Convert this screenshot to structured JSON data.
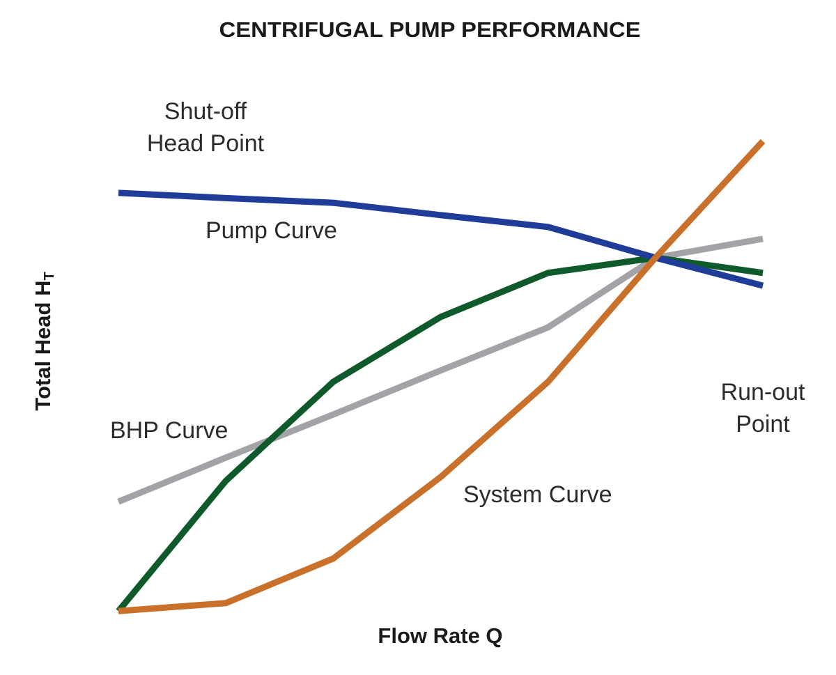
{
  "chart_data": {
    "type": "line",
    "title": "CENTRIFUGAL PUMP PERFORMANCE",
    "xlabel": "Flow Rate Q",
    "ylabel": "Total Head H",
    "ylabel_subscript": "T",
    "x": [
      0,
      1,
      2,
      3,
      4,
      5,
      6
    ],
    "xlim": [
      0,
      6
    ],
    "ylim": [
      0,
      100
    ],
    "grid": false,
    "series": [
      {
        "name": "BHP Curve",
        "color": "#a3a3a7",
        "values": [
          23.5,
          32.8,
          41.9,
          51.2,
          60.3,
          75.0,
          79.0
        ]
      },
      {
        "color": "#0e5a2b",
        "values": [
          0.4,
          27.9,
          48.8,
          62.5,
          71.8,
          75.0,
          71.8
        ]
      },
      {
        "name": "Pump Curve",
        "color": "#1e3c98",
        "values": [
          88.7,
          87.6,
          86.6,
          84.0,
          81.5,
          75.0,
          69.1
        ]
      },
      {
        "name": "System Curve",
        "color": "#c9702b",
        "values": [
          0.4,
          2.1,
          11.5,
          28.7,
          48.8,
          75.0,
          99.6
        ]
      }
    ],
    "annotations": [
      {
        "text": [
          "Shut-off",
          "Head Point"
        ]
      },
      {
        "text": [
          "Run-out",
          "Point"
        ]
      }
    ]
  }
}
